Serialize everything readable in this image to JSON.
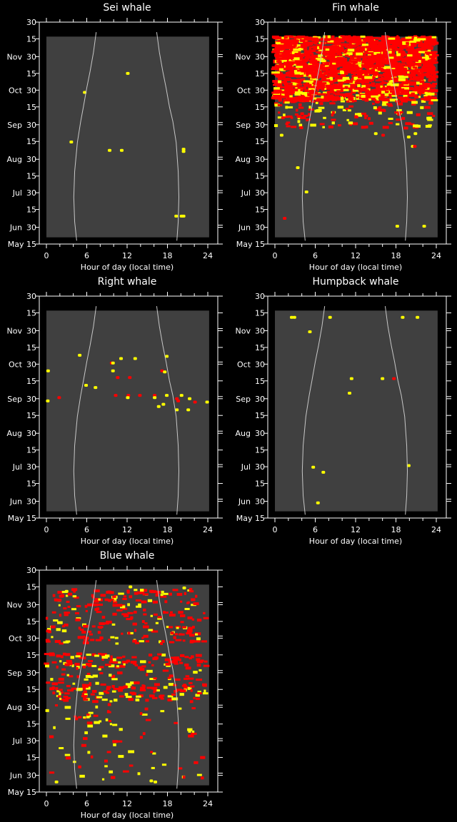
{
  "axes": {
    "xlabel": "Hour of day (local time)",
    "xlim": [
      0,
      24
    ],
    "ylim_days_since_may15": [
      0,
      199
    ],
    "x_ticks": [
      {
        "value": 0,
        "label": "0"
      },
      {
        "value": 6,
        "label": "6"
      },
      {
        "value": 12,
        "label": "12"
      },
      {
        "value": 18,
        "label": "18"
      },
      {
        "value": 24,
        "label": "24"
      }
    ],
    "y_ticks": [
      {
        "day": 0,
        "label": "May 15"
      },
      {
        "day": 15,
        "label": "30",
        "month": "Jun"
      },
      {
        "day": 31,
        "label": "15"
      },
      {
        "day": 46,
        "label": "30",
        "month": "Jul"
      },
      {
        "day": 61,
        "label": "15"
      },
      {
        "day": 76,
        "label": "30",
        "month": "Aug"
      },
      {
        "day": 92,
        "label": "15"
      },
      {
        "day": 107,
        "label": "30",
        "month": "Sep"
      },
      {
        "day": 123,
        "label": "15"
      },
      {
        "day": 138,
        "label": "30",
        "month": "Oct"
      },
      {
        "day": 153,
        "label": "15"
      },
      {
        "day": 168,
        "label": "30",
        "month": "Nov"
      },
      {
        "day": 184,
        "label": "15"
      },
      {
        "day": 199,
        "label": "30"
      }
    ],
    "effort_days": [
      6,
      186
    ],
    "effort_hours": [
      0,
      24.2
    ],
    "sunrise": [
      [
        3,
        4.5
      ],
      [
        20,
        4.2
      ],
      [
        42,
        4.07
      ],
      [
        65,
        4.2
      ],
      [
        91,
        4.6
      ],
      [
        110,
        5.1
      ],
      [
        123,
        5.5
      ],
      [
        140,
        6.0
      ],
      [
        155,
        6.5
      ],
      [
        172,
        7.0
      ],
      [
        190,
        7.4
      ]
    ],
    "sunset": [
      [
        3,
        19.4
      ],
      [
        20,
        19.6
      ],
      [
        42,
        19.7
      ],
      [
        65,
        19.6
      ],
      [
        91,
        19.3
      ],
      [
        110,
        18.8
      ],
      [
        123,
        18.3
      ],
      [
        140,
        17.8
      ],
      [
        155,
        17.3
      ],
      [
        172,
        16.8
      ],
      [
        190,
        16.4
      ]
    ]
  },
  "colors": {
    "background": "#000000",
    "effort": "#404040",
    "detection_red": "#ff0000",
    "detection_yellow": "#ffff00",
    "sun_curve": "#c8c8c8",
    "axis": "#ffffff"
  },
  "chart_data": [
    {
      "type": "scatter",
      "title": "Sei whale",
      "points": [
        [
          12.1,
          153,
          "y"
        ],
        [
          5.7,
          136,
          "y"
        ],
        [
          3.7,
          91.5,
          "y"
        ],
        [
          9.4,
          84,
          "y"
        ],
        [
          11.2,
          84,
          "y"
        ],
        [
          20.4,
          85,
          "y"
        ],
        [
          20.4,
          83,
          "y"
        ],
        [
          19.3,
          25,
          "y"
        ],
        [
          20.1,
          25,
          "y"
        ],
        [
          20.4,
          25,
          "y"
        ]
      ],
      "dense_bands": []
    },
    {
      "type": "scatter",
      "title": "Fin whale",
      "points": [
        [
          1.0,
          97.6,
          "y"
        ],
        [
          15.0,
          99,
          "y"
        ],
        [
          16.1,
          97.6,
          "r"
        ],
        [
          19.9,
          96,
          "y"
        ],
        [
          20.9,
          99,
          "y"
        ],
        [
          20.5,
          87.6,
          "y"
        ],
        [
          20.8,
          87.6,
          "r"
        ],
        [
          3.4,
          68.5,
          "y"
        ],
        [
          4.7,
          46.7,
          "y"
        ],
        [
          1.45,
          23,
          "r"
        ],
        [
          18.2,
          16,
          "y"
        ],
        [
          22.2,
          16,
          "y"
        ]
      ],
      "dense_bands": [
        {
          "days": [
            150,
            186
          ],
          "count": 1400,
          "red_fraction": 0.86,
          "seed": 11
        },
        {
          "days": [
            128,
            150
          ],
          "count": 650,
          "red_fraction": 0.8,
          "seed": 12
        },
        {
          "days": [
            104,
            128
          ],
          "count": 130,
          "red_fraction": 0.6,
          "seed": 13
        }
      ]
    },
    {
      "type": "scatter",
      "title": "Right whale",
      "points": [
        [
          4.95,
          146,
          "y"
        ],
        [
          9.7,
          139,
          "r"
        ],
        [
          9.9,
          139,
          "y"
        ],
        [
          11.1,
          143,
          "y"
        ],
        [
          13.2,
          143,
          "y"
        ],
        [
          17.9,
          145,
          "y"
        ],
        [
          0.25,
          132,
          "y"
        ],
        [
          9.9,
          132,
          "y"
        ],
        [
          17.2,
          132,
          "r"
        ],
        [
          17.6,
          131,
          "y"
        ],
        [
          10.6,
          126,
          "r"
        ],
        [
          12.4,
          126,
          "r"
        ],
        [
          5.9,
          119,
          "y"
        ],
        [
          7.3,
          117,
          "y"
        ],
        [
          10.3,
          110,
          "r"
        ],
        [
          12.2,
          110,
          "r"
        ],
        [
          13.9,
          110,
          "r"
        ],
        [
          16.1,
          110,
          "r"
        ],
        [
          17.9,
          110,
          "y"
        ],
        [
          20.1,
          110,
          "y"
        ],
        [
          12.1,
          108,
          "y"
        ],
        [
          16.1,
          108,
          "y"
        ],
        [
          1.9,
          108,
          "r"
        ],
        [
          0.2,
          105,
          "y"
        ],
        [
          19.4,
          107,
          "r"
        ],
        [
          19.6,
          105,
          "r"
        ],
        [
          21.3,
          107,
          "y"
        ],
        [
          22.1,
          104,
          "r"
        ],
        [
          23.9,
          104,
          "y"
        ],
        [
          16.7,
          100,
          "y"
        ],
        [
          17.4,
          102,
          "y"
        ],
        [
          19.4,
          97,
          "y"
        ],
        [
          21.1,
          97,
          "y"
        ]
      ],
      "dense_bands": []
    },
    {
      "type": "scatter",
      "title": "Humpback whale",
      "points": [
        [
          2.5,
          180,
          "y"
        ],
        [
          2.9,
          180,
          "y"
        ],
        [
          8.2,
          180,
          "y"
        ],
        [
          19.0,
          180,
          "y"
        ],
        [
          21.2,
          180,
          "y"
        ],
        [
          5.2,
          167,
          "y"
        ],
        [
          11.4,
          125,
          "y"
        ],
        [
          16.0,
          125,
          "y"
        ],
        [
          17.7,
          125,
          "r"
        ],
        [
          11.1,
          112,
          "y"
        ],
        [
          5.7,
          45.6,
          "y"
        ],
        [
          7.2,
          41,
          "y"
        ],
        [
          19.9,
          47,
          "y"
        ],
        [
          6.4,
          13.6,
          "y"
        ]
      ],
      "dense_bands": []
    },
    {
      "type": "scatter",
      "title": "Blue whale",
      "points": [
        [
          12.5,
          184,
          "y"
        ],
        [
          20.5,
          183,
          "y"
        ],
        [
          3.0,
          180,
          "y"
        ],
        [
          1.5,
          9,
          "y"
        ],
        [
          15.6,
          10,
          "y"
        ],
        [
          16.2,
          9,
          "y"
        ]
      ],
      "dense_bands": [
        {
          "days": [
            170,
            182
          ],
          "count": 75,
          "red_fraction": 0.72,
          "seed": 21
        },
        {
          "days": [
            145,
            170
          ],
          "count": 95,
          "red_fraction": 0.68,
          "seed": 22
        },
        {
          "days": [
            132,
            145
          ],
          "count": 65,
          "red_fraction": 0.72,
          "seed": 23
        },
        {
          "days": [
            112,
            124
          ],
          "count": 95,
          "red_fraction": 0.78,
          "seed": 24
        },
        {
          "days": [
            100,
            112
          ],
          "count": 40,
          "red_fraction": 0.6,
          "seed": 25
        },
        {
          "days": [
            82,
            98
          ],
          "count": 120,
          "red_fraction": 0.75,
          "seed": 26
        },
        {
          "days": [
            60,
            82
          ],
          "count": 35,
          "red_fraction": 0.55,
          "seed": 27
        },
        {
          "days": [
            10,
            60
          ],
          "count": 50,
          "red_fraction": 0.5,
          "seed": 28
        }
      ]
    }
  ]
}
